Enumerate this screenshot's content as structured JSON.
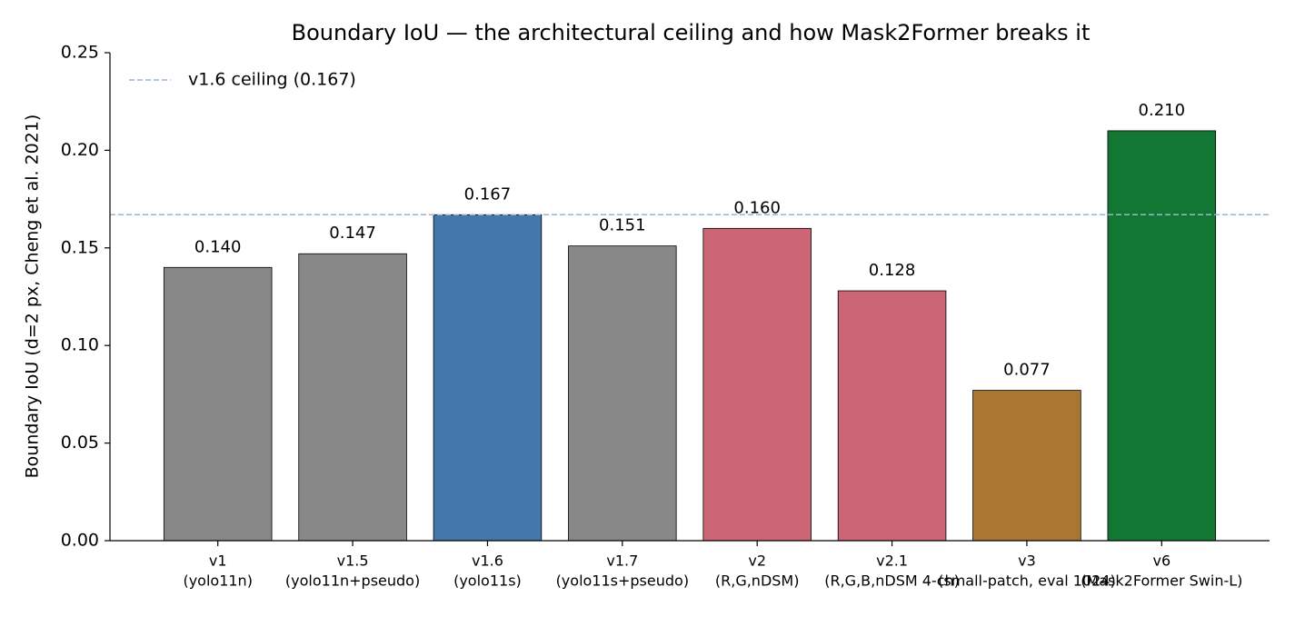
{
  "chart_data": {
    "type": "bar",
    "title": "Boundary IoU — the architectural ceiling and how Mask2Former breaks it",
    "y_label": "Boundary IoU (d=2 px, Cheng et al. 2021)",
    "categories": [
      [
        "v1",
        "(yolo11n)"
      ],
      [
        "v1.5",
        "(yolo11n+pseudo)"
      ],
      [
        "v1.6",
        "(yolo11s)"
      ],
      [
        "v1.7",
        "(yolo11s+pseudo)"
      ],
      [
        "v2",
        "(R,G,nDSM)"
      ],
      [
        "v2.1",
        "(R,G,B,nDSM 4-ch)"
      ],
      [
        "v3",
        "(small-patch, eval 1024)"
      ],
      [
        "v6",
        "(Mask2Former Swin-L)"
      ]
    ],
    "values": [
      0.14,
      0.147,
      0.167,
      0.151,
      0.16,
      0.128,
      0.077,
      0.21
    ],
    "value_labels": [
      "0.140",
      "0.147",
      "0.167",
      "0.151",
      "0.160",
      "0.128",
      "0.077",
      "0.210"
    ],
    "colors": [
      "#888888",
      "#888888",
      "#4477aa",
      "#888888",
      "#cc6677",
      "#cc6677",
      "#aa7733",
      "#117733"
    ],
    "ylim": [
      0,
      0.25
    ],
    "yticks": [
      {
        "value": 0,
        "label": "0.00"
      },
      {
        "value": 0.05,
        "label": "0.05"
      },
      {
        "value": 0.1,
        "label": "0.10"
      },
      {
        "value": 0.15,
        "label": "0.15"
      },
      {
        "value": 0.2,
        "label": "0.20"
      },
      {
        "value": 0.25,
        "label": "0.25"
      }
    ],
    "reference_line": {
      "value": 0.167,
      "label": "v1.6 ceiling (0.167)",
      "color": "#9db4d0"
    },
    "legend": "upper left"
  }
}
